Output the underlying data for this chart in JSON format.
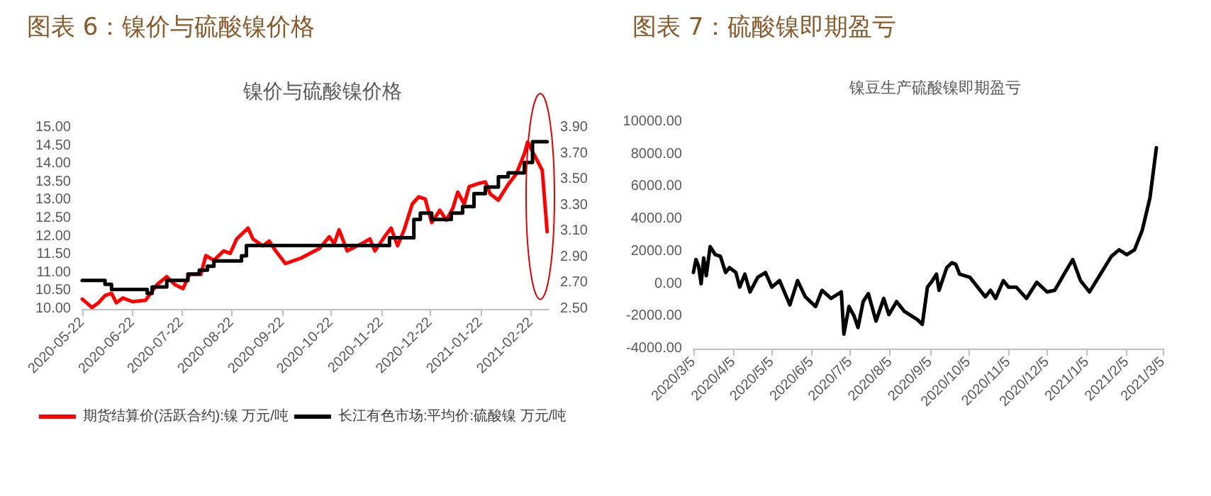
{
  "chart_data": [
    {
      "type": "line",
      "title": "图表 6：镍价与硫酸镍价格",
      "subtitle": "镍价与硫酸镍价格",
      "legend": "bottom",
      "marker": "none",
      "line_style": "solid",
      "grid": false,
      "xlim": [
        "2020-05-22",
        "2021-03-05"
      ],
      "xticks": [
        "2020-05-22",
        "2020-06-22",
        "2020-07-22",
        "2020-08-22",
        "2020-09-22",
        "2020-10-22",
        "2020-11-22",
        "2020-12-22",
        "2021-01-22",
        "2021-02-22"
      ],
      "ylim": [
        10,
        15
      ],
      "yticks": [
        {
          "value": 10,
          "label": "10.00"
        },
        {
          "value": 10.5,
          "label": "10.50"
        },
        {
          "value": 11,
          "label": "11.00"
        },
        {
          "value": 11.5,
          "label": "11.50"
        },
        {
          "value": 12,
          "label": "12.00"
        },
        {
          "value": 12.5,
          "label": "12.50"
        },
        {
          "value": 13,
          "label": "13.00"
        },
        {
          "value": 13.5,
          "label": "13.50"
        },
        {
          "value": 14,
          "label": "14.00"
        },
        {
          "value": 14.5,
          "label": "14.50"
        },
        {
          "value": 15,
          "label": "15.00"
        }
      ],
      "y2lim": [
        2.5,
        3.9
      ],
      "y2ticks": [
        {
          "value": 2.5,
          "label": "2.50"
        },
        {
          "value": 2.7,
          "label": "2.70"
        },
        {
          "value": 2.9,
          "label": "2.90"
        },
        {
          "value": 3.1,
          "label": "3.10"
        },
        {
          "value": 3.3,
          "label": "3.30"
        },
        {
          "value": 3.5,
          "label": "3.50"
        },
        {
          "value": 3.7,
          "label": "3.70"
        },
        {
          "value": 3.9,
          "label": "3.90"
        }
      ],
      "series": [
        {
          "name": "期货结算价(活跃合约):镍 万元/吨",
          "color": "#ff0000",
          "x": [
            "2020-05-22",
            "2020-05-28",
            "2020-06-01",
            "2020-06-05",
            "2020-06-09",
            "2020-06-12",
            "2020-06-16",
            "2020-06-22",
            "2020-06-30",
            "2020-07-03",
            "2020-07-07",
            "2020-07-13",
            "2020-07-18",
            "2020-07-23",
            "2020-07-27",
            "2020-08-03",
            "2020-08-06",
            "2020-08-11",
            "2020-08-17",
            "2020-08-21",
            "2020-08-25",
            "2020-09-01",
            "2020-09-04",
            "2020-09-10",
            "2020-09-14",
            "2020-09-18",
            "2020-09-24",
            "2020-10-04",
            "2020-10-15",
            "2020-10-21",
            "2020-10-24",
            "2020-10-27",
            "2020-11-01",
            "2020-11-10",
            "2020-11-15",
            "2020-11-18",
            "2020-11-24",
            "2020-11-28",
            "2020-12-02",
            "2020-12-06",
            "2020-12-11",
            "2020-12-15",
            "2020-12-19",
            "2020-12-23",
            "2020-12-28",
            "2021-01-01",
            "2021-01-05",
            "2021-01-08",
            "2021-01-12",
            "2021-01-15",
            "2021-01-21",
            "2021-01-25",
            "2021-01-28",
            "2021-02-02",
            "2021-02-08",
            "2021-02-13",
            "2021-02-18",
            "2021-02-20",
            "2021-02-23",
            "2021-03-01",
            "2021-03-04"
          ],
          "values": [
            10.27,
            10.04,
            10.17,
            10.37,
            10.43,
            10.17,
            10.3,
            10.2,
            10.24,
            10.43,
            10.67,
            10.89,
            10.67,
            10.56,
            10.95,
            10.95,
            11.47,
            11.34,
            11.6,
            11.53,
            11.93,
            12.23,
            11.93,
            11.74,
            11.87,
            11.6,
            11.25,
            11.41,
            11.67,
            11.99,
            11.8,
            12.18,
            11.6,
            11.8,
            11.93,
            11.6,
            11.99,
            12.23,
            11.74,
            12.18,
            12.89,
            13.09,
            13.03,
            12.38,
            12.72,
            12.45,
            12.78,
            13.22,
            12.89,
            13.37,
            13.46,
            13.5,
            13.17,
            13.0,
            13.43,
            13.72,
            14.28,
            14.6,
            14.34,
            13.82,
            12.13
          ]
        },
        {
          "name": "长江有色市场:平均价:硫酸镍 万元/吨",
          "color": "#000000",
          "type": "step",
          "axis": "y2",
          "x": [
            "2020-05-22",
            "2020-06-05",
            "2020-06-09",
            "2020-07-01",
            "2020-07-04",
            "2020-07-13",
            "2020-07-26",
            "2020-08-02",
            "2020-08-07",
            "2020-08-11",
            "2020-08-28",
            "2020-08-31",
            "2020-11-27",
            "2020-12-12",
            "2020-12-16",
            "2020-12-23",
            "2021-01-04",
            "2021-01-11",
            "2021-01-18",
            "2021-01-25",
            "2021-02-02",
            "2021-02-08",
            "2021-02-18",
            "2021-02-23",
            "2021-03-04"
          ],
          "values": [
            2.72,
            2.69,
            2.65,
            2.62,
            2.67,
            2.72,
            2.77,
            2.8,
            2.83,
            2.87,
            2.91,
            2.99,
            3.05,
            3.19,
            3.24,
            3.19,
            3.24,
            3.29,
            3.39,
            3.44,
            3.52,
            3.55,
            3.63,
            3.79,
            3.79
          ]
        }
      ]
    },
    {
      "type": "line",
      "title": "图表 7：硫酸镍即期盈亏",
      "subtitle": "镍豆生产硫酸镍即期盈亏",
      "legend": false,
      "marker": "none",
      "line_style": "solid",
      "grid": false,
      "xlim": [
        "2020-03-05",
        "2021-03-05"
      ],
      "xticks": [
        {
          "value": "2020-03-05",
          "label": "2020/3/5"
        },
        {
          "value": "2020-04-05",
          "label": "2020/4/5"
        },
        {
          "value": "2020-05-05",
          "label": "2020/5/5"
        },
        {
          "value": "2020-06-05",
          "label": "2020/6/5"
        },
        {
          "value": "2020-07-05",
          "label": "2020/7/5"
        },
        {
          "value": "2020-08-05",
          "label": "2020/8/5"
        },
        {
          "value": "2020-09-05",
          "label": "2020/9/5"
        },
        {
          "value": "2020-10-05",
          "label": "2020/10/5"
        },
        {
          "value": "2020-11-05",
          "label": "2020/11/5"
        },
        {
          "value": "2020-12-05",
          "label": "2020/12/5"
        },
        {
          "value": "2021-01-05",
          "label": "2021/1/5"
        },
        {
          "value": "2021-02-05",
          "label": "2021/2/5"
        },
        {
          "value": "2021-03-05",
          "label": "2021/3/5"
        }
      ],
      "ylim": [
        -4000,
        10000
      ],
      "yticks": [
        {
          "value": -4000,
          "label": "-4000.00"
        },
        {
          "value": -2000,
          "label": "-2000.00"
        },
        {
          "value": 0,
          "label": "0.00"
        },
        {
          "value": 2000,
          "label": "2000.00"
        },
        {
          "value": 4000,
          "label": "4000.00"
        },
        {
          "value": 6000,
          "label": "6000.00"
        },
        {
          "value": 8000,
          "label": "8000.00"
        },
        {
          "value": 10000,
          "label": "10000.00"
        }
      ],
      "series": [
        {
          "color": "#000000",
          "x": [
            "2020-03-05",
            "2020-03-07",
            "2020-03-09",
            "2020-03-11",
            "2020-03-13",
            "2020-03-15",
            "2020-03-18",
            "2020-03-22",
            "2020-03-26",
            "2020-03-30",
            "2020-04-02",
            "2020-04-07",
            "2020-04-10",
            "2020-04-14",
            "2020-04-18",
            "2020-04-24",
            "2020-04-30",
            "2020-05-05",
            "2020-05-11",
            "2020-05-19",
            "2020-05-25",
            "2020-05-31",
            "2020-06-08",
            "2020-06-13",
            "2020-06-20",
            "2020-06-28",
            "2020-06-30",
            "2020-07-04",
            "2020-07-08",
            "2020-07-11",
            "2020-07-15",
            "2020-07-19",
            "2020-07-25",
            "2020-07-31",
            "2020-08-04",
            "2020-08-10",
            "2020-08-16",
            "2020-08-26",
            "2020-08-30",
            "2020-09-03",
            "2020-09-06",
            "2020-09-10",
            "2020-09-12",
            "2020-09-18",
            "2020-09-22",
            "2020-09-25",
            "2020-09-28",
            "2020-10-06",
            "2020-10-12",
            "2020-10-18",
            "2020-10-22",
            "2020-10-26",
            "2020-11-01",
            "2020-11-05",
            "2020-11-11",
            "2020-11-19",
            "2020-11-27",
            "2020-12-05",
            "2020-12-11",
            "2020-12-19",
            "2020-12-25",
            "2020-12-31",
            "2021-01-07",
            "2021-01-14",
            "2021-01-24",
            "2021-01-30",
            "2021-02-05",
            "2021-02-11",
            "2021-02-17",
            "2021-02-23",
            "2021-02-28"
          ],
          "values": [
            700,
            1500,
            1100,
            0,
            1600,
            500,
            2300,
            1800,
            1700,
            700,
            1000,
            700,
            -200,
            600,
            -500,
            400,
            700,
            -200,
            200,
            -1300,
            200,
            -800,
            -1400,
            -400,
            -900,
            -500,
            -3100,
            -1400,
            -2000,
            -2700,
            -1100,
            -600,
            -2300,
            -900,
            -1900,
            -1100,
            -1700,
            -2200,
            -2500,
            -200,
            100,
            600,
            -400,
            1000,
            1300,
            1200,
            600,
            400,
            -200,
            -800,
            -400,
            -900,
            200,
            -200,
            -200,
            -900,
            100,
            -500,
            -400,
            700,
            1500,
            200,
            -500,
            400,
            1700,
            2100,
            1800,
            2100,
            3300,
            5300,
            8400
          ]
        }
      ]
    }
  ]
}
